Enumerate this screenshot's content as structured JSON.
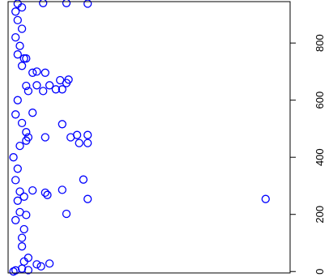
{
  "chart_data": {
    "type": "scatter",
    "title": "",
    "xlabel": "",
    "ylabel": "",
    "orientation": "rotated-90",
    "axis_side": "right",
    "tick_label_rotation": "vertical",
    "marker": "open-circle",
    "grid": false,
    "legend": "none",
    "colors": {
      "point": "#0000ff",
      "axis": "#000000",
      "background": "#ffffff"
    },
    "xlim": [
      0,
      13
    ],
    "ylim": [
      -5,
      945
    ],
    "yticks": [
      {
        "value": 0,
        "label": "0"
      },
      {
        "value": 200,
        "label": "200"
      },
      {
        "value": 400,
        "label": "400"
      },
      {
        "value": 600,
        "label": "600"
      },
      {
        "value": 800,
        "label": "800"
      }
    ],
    "points": [
      [
        0.1,
        0
      ],
      [
        0.2,
        4
      ],
      [
        0.5,
        10
      ],
      [
        0.8,
        5
      ],
      [
        1.4,
        18
      ],
      [
        1.2,
        25
      ],
      [
        1.8,
        28
      ],
      [
        0.6,
        35
      ],
      [
        0.8,
        48
      ],
      [
        0.5,
        88
      ],
      [
        0.5,
        118
      ],
      [
        0.6,
        148
      ],
      [
        0.2,
        180
      ],
      [
        0.4,
        208
      ],
      [
        0.7,
        198
      ],
      [
        0.3,
        248
      ],
      [
        0.6,
        262
      ],
      [
        0.4,
        280
      ],
      [
        1.0,
        284
      ],
      [
        1.6,
        276
      ],
      [
        1.7,
        268
      ],
      [
        2.4,
        286
      ],
      [
        3.4,
        322
      ],
      [
        3.6,
        254
      ],
      [
        2.6,
        202
      ],
      [
        12.0,
        254
      ],
      [
        0.2,
        320
      ],
      [
        0.3,
        360
      ],
      [
        0.1,
        400
      ],
      [
        0.4,
        440
      ],
      [
        0.8,
        470
      ],
      [
        0.7,
        488
      ],
      [
        0.7,
        458
      ],
      [
        1.6,
        470
      ],
      [
        2.8,
        470
      ],
      [
        3.1,
        478
      ],
      [
        3.6,
        478
      ],
      [
        3.2,
        450
      ],
      [
        3.6,
        450
      ],
      [
        2.4,
        516
      ],
      [
        0.5,
        520
      ],
      [
        0.2,
        550
      ],
      [
        1.0,
        556
      ],
      [
        0.3,
        600
      ],
      [
        0.8,
        632
      ],
      [
        1.2,
        652
      ],
      [
        0.7,
        650
      ],
      [
        1.5,
        632
      ],
      [
        1.8,
        652
      ],
      [
        2.1,
        638
      ],
      [
        2.4,
        638
      ],
      [
        2.6,
        660
      ],
      [
        2.7,
        672
      ],
      [
        2.3,
        670
      ],
      [
        1.6,
        696
      ],
      [
        1.0,
        696
      ],
      [
        1.2,
        700
      ],
      [
        0.5,
        720
      ],
      [
        0.6,
        746
      ],
      [
        0.7,
        746
      ],
      [
        0.3,
        760
      ],
      [
        0.4,
        790
      ],
      [
        0.2,
        820
      ],
      [
        0.5,
        850
      ],
      [
        0.3,
        880
      ],
      [
        0.2,
        910
      ],
      [
        0.5,
        925
      ],
      [
        0.3,
        938
      ],
      [
        1.5,
        940
      ],
      [
        2.6,
        940
      ],
      [
        3.6,
        938
      ]
    ]
  }
}
